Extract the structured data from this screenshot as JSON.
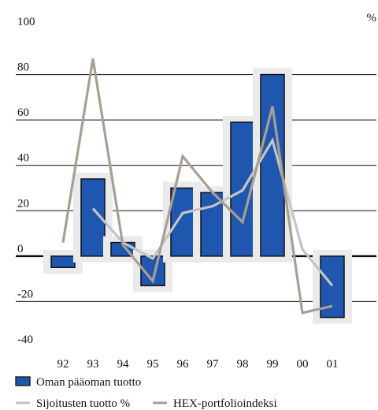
{
  "chart_data": {
    "type": "bar",
    "unit_label": "%",
    "categories": [
      "92",
      "93",
      "94",
      "95",
      "96",
      "97",
      "98",
      "99",
      "00",
      "01"
    ],
    "ylim": [
      -40,
      100
    ],
    "yticks": [
      100,
      80,
      60,
      40,
      20,
      0,
      -20,
      -40
    ],
    "grid": true,
    "legend_position": "bottom-left",
    "series": [
      {
        "name": "Oman pääoman tuotto",
        "kind": "bar",
        "color": "#1f56b0",
        "values": [
          -5,
          34,
          6,
          -13,
          30,
          28,
          59,
          80,
          null,
          -27
        ]
      },
      {
        "name": "Sijoitusten tuotto %",
        "kind": "line",
        "color": "#c4c4c4",
        "values": [
          null,
          21,
          6,
          -1,
          19,
          22,
          29,
          51,
          3,
          -13
        ]
      },
      {
        "name": "HEX-portfolioindeksi",
        "kind": "line",
        "color": "#a89f93",
        "values": [
          6,
          87,
          5,
          -11,
          44,
          28,
          15,
          66,
          -25,
          -22
        ]
      }
    ]
  }
}
